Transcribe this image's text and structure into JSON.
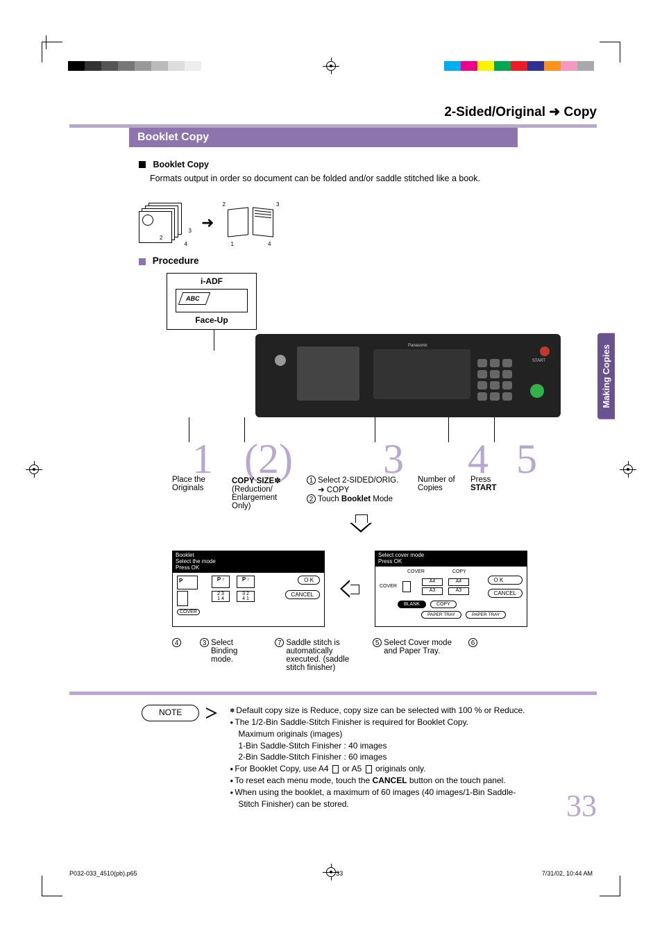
{
  "reg_gray_colors": [
    "#000000",
    "#333333",
    "#555555",
    "#777777",
    "#999999",
    "#bbbbbb",
    "#dddddd",
    "#eeeeee",
    "#ffffff"
  ],
  "reg_cmyk_colors": [
    "#00aeef",
    "#ec008c",
    "#fff200",
    "#00a651",
    "#ed1c24",
    "#2e3192",
    "#f7941d",
    "#f49ac1",
    "#a7a9ac"
  ],
  "header": {
    "section_title_left": "2-Sided/Original",
    "section_title_right": "Copy",
    "bar_title": "Booklet Copy"
  },
  "intro": {
    "heading": "Booklet Copy",
    "text": "Formats output in order so document can be folded and/or saddle stitched like a book."
  },
  "procedure_heading": "Procedure",
  "iadf": {
    "top": "i-ADF",
    "bottom": "Face-Up"
  },
  "steps": {
    "n1": "1",
    "n2": "2",
    "n3": "3",
    "n4": "4",
    "n5": "5",
    "s1a": "Place the",
    "s1b": "Originals",
    "s2a": "COPY SIZE",
    "s2a_mark": "✽",
    "s2b": "(Reduction/",
    "s2c": "Enlargement",
    "s2d": "Only)",
    "s3_c1": "1",
    "s3_l1a": "Select 2-SIDED/ORIG.",
    "s3_l1b": "COPY",
    "s3_c2": "2",
    "s3_l2a": "Touch ",
    "s3_l2b": "Booklet",
    "s3_l2c": " Mode",
    "s4a": "Number of",
    "s4b": "Copies",
    "s5a": "Press",
    "s5b": "START"
  },
  "screen1": {
    "h1": "Booklet",
    "h2": "Select the mode",
    "h3": "Press OK",
    "ok": "O K",
    "cancel": "CANCEL",
    "cover": "COVER"
  },
  "screen2": {
    "h1": "Select cover mode",
    "h2": "Press OK",
    "cover_col": "COVER",
    "copy_col": "COPY",
    "a4": "A4",
    "a3": "A3",
    "blank": "BLANK",
    "copy": "COPY",
    "ptray": "PAPER TRAY",
    "ok": "O K",
    "cancel": "CANCEL"
  },
  "callouts": {
    "g4": "4",
    "g3n": "3",
    "g3a": "Select",
    "g3b": "Binding",
    "g3c": "mode.",
    "g7n": "7",
    "g7a": "Saddle stitch is",
    "g7b": "automatically",
    "g7c": "executed. (saddle",
    "g7d": "stitch finisher)",
    "g5n": "5",
    "g5a": "Select Cover mode",
    "g5b": "and Paper Tray.",
    "g6": "6"
  },
  "notes": {
    "label": "NOTE",
    "n1": "Default copy size is Reduce, copy size can be selected with 100 % or Reduce.",
    "n2": "The 1/2-Bin Saddle-Stitch Finisher is required for Booklet Copy.",
    "n2a": "Maximum originals (images)",
    "n2b": "1-Bin Saddle-Stitch Finisher : 40 images",
    "n2c": "2-Bin Saddle-Stitch Finisher : 60 images",
    "n3a": "For Booklet Copy, use A4 ",
    "n3b": " or A5 ",
    "n3c": " originals only.",
    "n4a": "To reset each menu mode, touch the ",
    "n4b": "CANCEL",
    "n4c": " button on the touch panel.",
    "n5": "When using the booklet, a maximum of 60 images (40 images/1-Bin Saddle-Stitch Finisher) can be stored."
  },
  "page_number": "33",
  "side_tab": "Making Copies",
  "footer": {
    "file": "P032-033_4510(pb).p65",
    "page": "33",
    "date": "7/31/02, 10:44 AM"
  }
}
